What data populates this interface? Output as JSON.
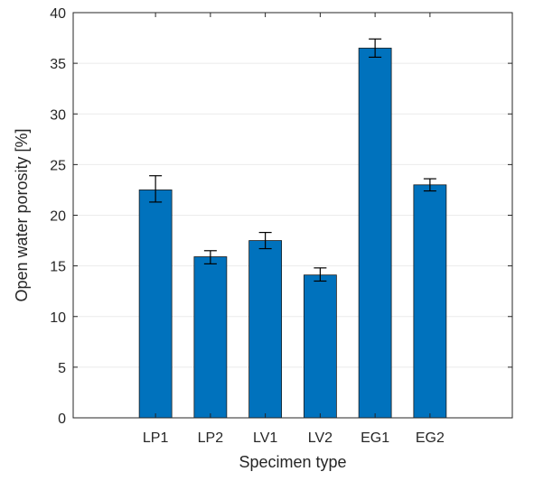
{
  "chart_data": {
    "type": "bar",
    "title": "",
    "xlabel": "Specimen type",
    "ylabel": "Open water porosity [%]",
    "categories": [
      "LP1",
      "LP2",
      "LV1",
      "LV2",
      "EG1",
      "EG2"
    ],
    "values": [
      22.5,
      15.9,
      17.5,
      14.1,
      36.5,
      23.0
    ],
    "error_bars": [
      {
        "low": 21.3,
        "high": 23.9
      },
      {
        "low": 15.2,
        "high": 16.5
      },
      {
        "low": 16.7,
        "high": 18.3
      },
      {
        "low": 13.5,
        "high": 14.8
      },
      {
        "low": 35.6,
        "high": 37.4
      },
      {
        "low": 22.4,
        "high": 23.6
      }
    ],
    "ylim": [
      0,
      40
    ],
    "yticks": [
      0,
      5,
      10,
      15,
      20,
      25,
      30,
      35,
      40
    ],
    "grid": "horizontal",
    "bar_color": "#0072BD",
    "bar_edge_color": "#1a1a1a",
    "axis_color": "#262626",
    "grid_color": "#ebebeb"
  }
}
